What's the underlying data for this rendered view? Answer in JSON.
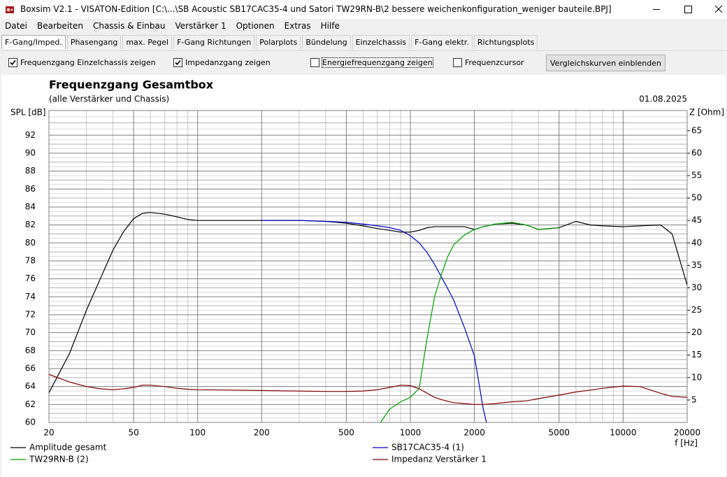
{
  "window": {
    "title": "Boxsim V2.1 - VISATON-Edition [C:\\...\\SB Acoustic SB17CAC35-4 und Satori TW29RN-B\\2 bessere weichenkonfiguration_weniger bauteile.BPJ]"
  },
  "menu": [
    "Datei",
    "Bearbeiten",
    "Chassis & Einbau",
    "Verstärker 1",
    "Optionen",
    "Extras",
    "Hilfe"
  ],
  "tabs": {
    "items": [
      "F-Gang/Imped.",
      "Phasengang",
      "max. Pegel",
      "F-Gang Richtungen",
      "Polarplots",
      "Bündelung",
      "Einzelchassis",
      "F-Gang elektr.",
      "Richtungsplots"
    ],
    "selected": 0
  },
  "toolbar": {
    "options": [
      {
        "label": "Frequenzgang Einzelchassis zeigen",
        "checked": true
      },
      {
        "label": "Impedanzgang zeigen",
        "checked": true
      },
      {
        "label": "Energiefrequenzgang zeigen",
        "checked": false
      },
      {
        "label": "Frequenzcursor",
        "checked": false
      }
    ],
    "button": "Vergleichskurven einblenden"
  },
  "chart_data": {
    "type": "line",
    "title": "Frequenzgang Gesamtbox",
    "subtitle": "(alle Verstärker und Chassis)",
    "date": "01.08.2025",
    "y_label": "SPL [dB]",
    "y2_label": "Z [Ohm]",
    "x_label": "f [Hz]",
    "x_log": true,
    "grid": true,
    "minor_grid": true,
    "legend": "bottom",
    "xlim": [
      20,
      20000
    ],
    "xticks": [
      20,
      50,
      100,
      200,
      500,
      1000,
      2000,
      5000,
      10000,
      20000
    ],
    "ylim": [
      60,
      94.75
    ],
    "yticks": [
      60,
      62,
      64,
      66,
      68,
      70,
      72,
      74,
      76,
      78,
      80,
      82,
      84,
      86,
      88,
      90,
      92
    ],
    "y2lim": [
      0,
      69.5
    ],
    "y2ticks": [
      5,
      10,
      15,
      20,
      25,
      30,
      35,
      40,
      45,
      50,
      55,
      60,
      65
    ],
    "x": [
      20,
      25,
      30,
      35,
      40,
      45,
      50,
      55,
      60,
      70,
      80,
      90,
      100,
      150,
      200,
      300,
      400,
      500,
      600,
      700,
      800,
      900,
      1000,
      1100,
      1200,
      1300,
      1400,
      1500,
      1600,
      1800,
      2000,
      2200,
      2500,
      3000,
      3500,
      4000,
      5000,
      6000,
      7000,
      8000,
      10000,
      12000,
      15000,
      17000,
      20000
    ],
    "series": [
      {
        "name": "Amplitude gesamt",
        "color": "#000000",
        "values": [
          63.3,
          67.7,
          72.5,
          76.1,
          79.2,
          81.3,
          82.7,
          83.3,
          83.4,
          83.2,
          82.9,
          82.6,
          82.5,
          82.5,
          82.5,
          82.5,
          82.4,
          82.2,
          81.9,
          81.6,
          81.4,
          81.2,
          81.2,
          81.4,
          81.7,
          81.8,
          81.8,
          81.8,
          81.8,
          81.8,
          81.5,
          81.8,
          82.1,
          82.2,
          82.0,
          81.5,
          81.7,
          82.4,
          82.0,
          81.9,
          81.8,
          81.9,
          82.0,
          81.0,
          75.3
        ]
      },
      {
        "name": "SB17CAC35-4 (1)",
        "color": "#0000c8",
        "values": [
          null,
          null,
          null,
          null,
          null,
          null,
          null,
          null,
          null,
          null,
          null,
          null,
          null,
          null,
          82.5,
          82.5,
          82.4,
          82.3,
          82.1,
          81.9,
          81.7,
          81.4,
          80.8,
          80.0,
          78.9,
          77.6,
          76.2,
          74.9,
          73.6,
          70.5,
          67.4,
          61.5,
          56,
          null,
          null,
          null,
          null,
          null,
          null,
          null,
          null,
          null,
          null,
          null,
          null
        ]
      },
      {
        "name": "TW29RN-B (2)",
        "color": "#00a000",
        "values": [
          null,
          null,
          null,
          null,
          null,
          null,
          null,
          null,
          null,
          null,
          null,
          null,
          null,
          null,
          null,
          null,
          null,
          null,
          null,
          59.5,
          61.5,
          62.3,
          62.8,
          63.8,
          69.5,
          74.0,
          76.5,
          78.5,
          79.8,
          80.9,
          81.5,
          81.8,
          82.1,
          82.3,
          82.0,
          81.5,
          81.7,
          null,
          null,
          null,
          null,
          null,
          null,
          null,
          null
        ]
      },
      {
        "name": "Impedanz Verstärker 1",
        "color": "#800000",
        "axis": "y2",
        "values": [
          10.7,
          9.0,
          8.0,
          7.5,
          7.3,
          7.5,
          7.8,
          8.3,
          8.3,
          8.0,
          7.6,
          7.4,
          7.3,
          7.2,
          7.1,
          7.0,
          6.9,
          6.9,
          7.0,
          7.3,
          7.8,
          8.3,
          8.2,
          7.5,
          6.5,
          5.6,
          5.1,
          4.7,
          4.4,
          4.2,
          4.0,
          4.0,
          4.2,
          4.6,
          4.8,
          5.3,
          6.1,
          6.8,
          7.2,
          7.6,
          8.1,
          8.0,
          6.5,
          5.8,
          5.6
        ]
      }
    ]
  }
}
